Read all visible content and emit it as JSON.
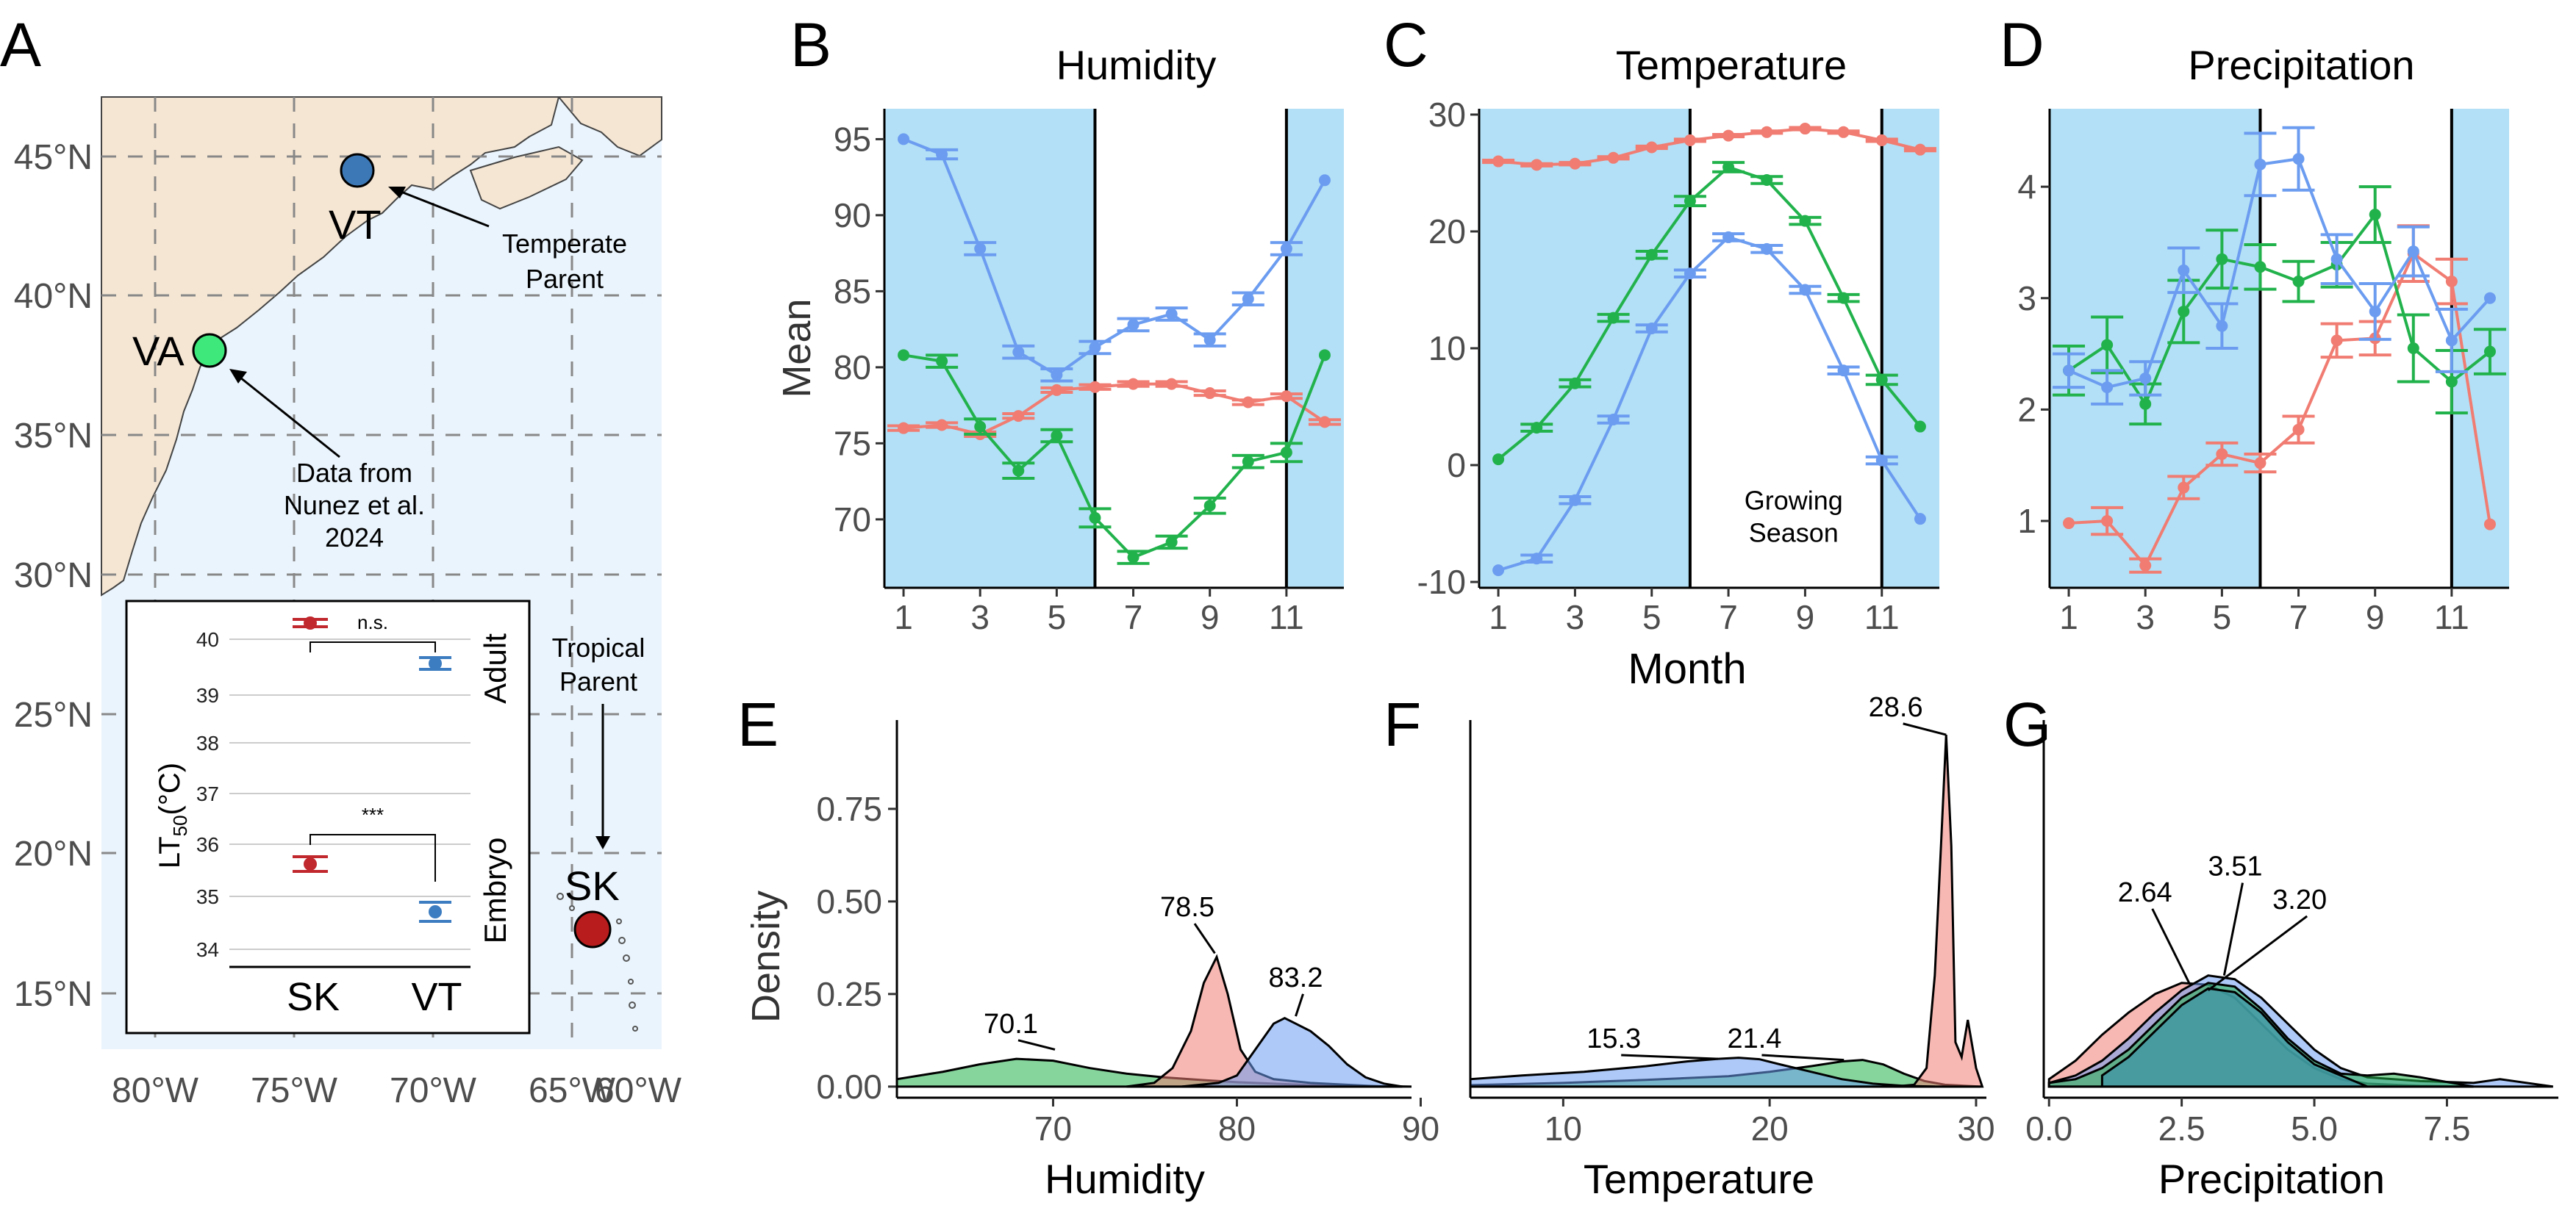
{
  "colors": {
    "red": "#F07C72",
    "green": "#22B24C",
    "blue": "#6B9CF0",
    "season_bg": "#B3E0F6",
    "map_land": "#F5E6D3",
    "map_sea": "#EAF4FC",
    "dark_red": "#B22222",
    "dark_blue": "#3E7FC1",
    "site_green": "#3EE87A",
    "site_blue": "#3C78B5",
    "site_red": "#B81C1C",
    "sig_red": "#C0282E",
    "sig_blue": "#3C7CC0"
  },
  "panel_letters": [
    "A",
    "B",
    "C",
    "D",
    "E",
    "F",
    "G"
  ],
  "map": {
    "lat_labels": [
      "45°N",
      "40°N",
      "35°N",
      "30°N",
      "25°N",
      "20°N",
      "15°N"
    ],
    "lon_labels": [
      "80°W",
      "75°W",
      "70°W",
      "65°W",
      "60°W"
    ],
    "sites": [
      {
        "label": "VT",
        "color": "#3C78B5"
      },
      {
        "label": "VA",
        "color": "#3EE87A"
      },
      {
        "label": "SK",
        "color": "#B81C1C"
      }
    ],
    "annotations": {
      "temperate_line1": "Temperate",
      "temperate_line2": "Parent",
      "data_line1": "Data from",
      "data_line2": "Nunez et al.",
      "data_line3": "2024",
      "tropical_line1": "Tropical",
      "tropical_line2": "Parent"
    }
  },
  "inset": {
    "ylabel_main": "LT",
    "ylabel_sub": "50",
    "ylabel_unit": "(°C)",
    "yticks": [
      "40",
      "39",
      "38",
      "37",
      "36",
      "35",
      "34"
    ],
    "xticks": [
      "SK",
      "VT"
    ],
    "strip_adult": "Adult",
    "strip_embryo": "Embryo",
    "sig_adult": "n.s.",
    "sig_embryo": "***"
  },
  "chart_data": [
    {
      "panel": "B",
      "type": "line",
      "title": "Humidity",
      "ylabel": "Mean",
      "xlabel": "",
      "x": [
        1,
        2,
        3,
        4,
        5,
        6,
        7,
        8,
        9,
        10,
        11,
        12
      ],
      "xticks": [
        1,
        3,
        5,
        7,
        9,
        11
      ],
      "ylim": [
        65.5,
        97
      ],
      "yticks": [
        70,
        75,
        80,
        85,
        90,
        95
      ],
      "season_shading": [
        [
          0.5,
          6
        ],
        [
          11,
          12.5
        ]
      ],
      "series": [
        {
          "color": "red",
          "values": [
            76.0,
            76.2,
            75.6,
            76.8,
            78.5,
            78.7,
            78.9,
            78.9,
            78.3,
            77.7,
            78.1,
            76.4
          ],
          "err": [
            0.15,
            0.15,
            0.15,
            0.15,
            0.15,
            0.15,
            0.15,
            0.15,
            0.15,
            0.15,
            0.15,
            0.15
          ]
        },
        {
          "color": "green",
          "values": [
            80.8,
            80.4,
            76.1,
            73.2,
            75.5,
            70.1,
            67.5,
            68.5,
            70.9,
            73.8,
            74.4,
            80.8
          ],
          "err": [
            0,
            0.4,
            0.5,
            0.5,
            0.4,
            0.6,
            0.4,
            0.4,
            0.5,
            0.4,
            0.6,
            0
          ]
        },
        {
          "color": "blue",
          "values": [
            95.0,
            94.0,
            87.8,
            81.0,
            79.5,
            81.3,
            82.8,
            83.5,
            81.8,
            84.5,
            87.8,
            92.3
          ],
          "err": [
            0,
            0.3,
            0.4,
            0.4,
            0.4,
            0.4,
            0.4,
            0.4,
            0.4,
            0.4,
            0.4,
            0
          ]
        }
      ]
    },
    {
      "panel": "C",
      "type": "line",
      "title": "Temperature",
      "ylabel": "",
      "xlabel": "Month",
      "x": [
        1,
        2,
        3,
        4,
        5,
        6,
        7,
        8,
        9,
        10,
        11,
        12
      ],
      "xticks": [
        1,
        3,
        5,
        7,
        9,
        11
      ],
      "ylim": [
        -10.5,
        30.5
      ],
      "yticks": [
        -10,
        0,
        10,
        20,
        30
      ],
      "season_shading": [
        [
          0.5,
          6
        ],
        [
          11,
          12.5
        ]
      ],
      "annotation_line1": "Growing",
      "annotation_line2": "Season",
      "series": [
        {
          "color": "red",
          "values": [
            26.0,
            25.7,
            25.8,
            26.3,
            27.2,
            27.8,
            28.2,
            28.5,
            28.8,
            28.5,
            27.8,
            27.0
          ],
          "err": [
            0.1,
            0.1,
            0.1,
            0.1,
            0.1,
            0.1,
            0.1,
            0.1,
            0.1,
            0.1,
            0.1,
            0.1
          ]
        },
        {
          "color": "green",
          "values": [
            0.5,
            3.2,
            7.0,
            12.6,
            18.0,
            22.6,
            25.5,
            24.4,
            20.9,
            14.3,
            7.3,
            3.3
          ],
          "err": [
            0,
            0.3,
            0.3,
            0.3,
            0.3,
            0.4,
            0.4,
            0.3,
            0.3,
            0.3,
            0.4,
            0
          ]
        },
        {
          "color": "blue",
          "values": [
            -9.0,
            -8.0,
            -3.0,
            3.9,
            11.7,
            16.4,
            19.5,
            18.5,
            15.0,
            8.1,
            0.4,
            -4.6
          ],
          "err": [
            0,
            0.3,
            0.3,
            0.3,
            0.3,
            0.3,
            0.3,
            0.3,
            0.3,
            0.3,
            0.3,
            0
          ]
        }
      ]
    },
    {
      "panel": "D",
      "type": "line",
      "title": "Precipitation",
      "ylabel": "",
      "xlabel": "",
      "x": [
        1,
        2,
        3,
        4,
        5,
        6,
        7,
        8,
        9,
        10,
        11,
        12
      ],
      "xticks": [
        1,
        3,
        5,
        7,
        9,
        11
      ],
      "ylim": [
        0.4,
        4.7
      ],
      "yticks": [
        1,
        2,
        3,
        4
      ],
      "season_shading": [
        [
          0.5,
          6
        ],
        [
          11,
          12.5
        ]
      ],
      "series": [
        {
          "color": "red",
          "values": [
            0.98,
            1.0,
            0.6,
            1.3,
            1.6,
            1.52,
            1.82,
            2.62,
            2.64,
            3.4,
            3.15,
            0.97
          ],
          "err": [
            0,
            0.12,
            0.06,
            0.1,
            0.1,
            0.08,
            0.12,
            0.15,
            0.15,
            0.25,
            0.2,
            0
          ]
        },
        {
          "color": "green",
          "values": [
            2.35,
            2.58,
            2.05,
            2.88,
            3.35,
            3.28,
            3.15,
            3.3,
            3.75,
            2.55,
            2.25,
            2.52
          ],
          "err": [
            0.22,
            0.25,
            0.18,
            0.28,
            0.26,
            0.2,
            0.18,
            0.2,
            0.25,
            0.3,
            0.28,
            0.2
          ]
        },
        {
          "color": "blue",
          "values": [
            2.35,
            2.2,
            2.28,
            3.25,
            2.75,
            4.2,
            4.25,
            3.35,
            2.88,
            3.42,
            2.62,
            3.0
          ],
          "err": [
            0.15,
            0.15,
            0.15,
            0.2,
            0.2,
            0.28,
            0.28,
            0.22,
            0.25,
            0.22,
            0.28,
            0
          ]
        }
      ]
    },
    {
      "panel": "E",
      "type": "area",
      "title": "",
      "xlabel": "Humidity",
      "ylabel": "Density",
      "xlim": [
        61.5,
        89.5
      ],
      "xticks": [
        70,
        80,
        90
      ],
      "ylim": [
        -0.03,
        0.97
      ],
      "yticks": [
        0.0,
        0.25,
        0.5,
        0.75
      ],
      "ytick_labels": [
        "0.00",
        "0.25",
        "0.50",
        "0.75"
      ],
      "peak_labels": [
        "70.1",
        "78.5",
        "83.2"
      ],
      "series": [
        {
          "color": "green",
          "x": [
            61.5,
            64,
            66,
            68,
            70,
            72,
            74,
            76,
            78,
            80,
            82,
            84,
            86,
            88,
            89.5
          ],
          "values": [
            0.02,
            0.04,
            0.06,
            0.075,
            0.07,
            0.05,
            0.035,
            0.025,
            0.018,
            0.012,
            0.008,
            0.004,
            0.002,
            0.001,
            0
          ]
        },
        {
          "color": "red",
          "x": [
            74,
            75.5,
            76.5,
            77.5,
            78.2,
            78.9,
            79.5,
            80.2,
            81,
            82,
            84,
            86,
            88
          ],
          "values": [
            0,
            0.01,
            0.05,
            0.15,
            0.28,
            0.35,
            0.25,
            0.1,
            0.04,
            0.02,
            0.01,
            0.005,
            0
          ]
        },
        {
          "color": "blue",
          "x": [
            77,
            79,
            80,
            81,
            82,
            82.6,
            83.2,
            84,
            85,
            86,
            87,
            88,
            89
          ],
          "values": [
            0,
            0.01,
            0.03,
            0.1,
            0.17,
            0.185,
            0.17,
            0.15,
            0.11,
            0.06,
            0.025,
            0.008,
            0
          ]
        }
      ]
    },
    {
      "panel": "F",
      "type": "area",
      "title": "",
      "xlabel": "Temperature",
      "ylabel": "",
      "xlim": [
        5.5,
        30.5
      ],
      "xticks": [
        10,
        20,
        30
      ],
      "ylim": [
        -0.03,
        0.97
      ],
      "yticks": [
        0.0,
        0.25,
        0.5,
        0.75
      ],
      "peak_labels": [
        "15.3",
        "21.4",
        "28.6"
      ],
      "series": [
        {
          "color": "green",
          "x": [
            5.5,
            10,
            14,
            18,
            20,
            22,
            23.5,
            24.5,
            25.5,
            26.5,
            27.5,
            28.5,
            29.5,
            30.2
          ],
          "values": [
            0.004,
            0.01,
            0.018,
            0.028,
            0.04,
            0.055,
            0.068,
            0.072,
            0.06,
            0.035,
            0.015,
            0.005,
            0.002,
            0
          ]
        },
        {
          "color": "red",
          "x": [
            26,
            27,
            27.6,
            28,
            28.3,
            28.55,
            28.8,
            29.0,
            29.3,
            29.6,
            30.0,
            30.3
          ],
          "values": [
            0,
            0.005,
            0.05,
            0.3,
            0.65,
            0.95,
            0.65,
            0.12,
            0.08,
            0.18,
            0.05,
            0
          ]
        },
        {
          "color": "blue",
          "x": [
            5.5,
            8,
            11,
            14,
            16,
            17.5,
            18.5,
            19.5,
            20.5,
            22,
            23.5,
            25,
            26.5,
            28
          ],
          "values": [
            0.02,
            0.03,
            0.04,
            0.055,
            0.068,
            0.075,
            0.078,
            0.074,
            0.06,
            0.04,
            0.02,
            0.008,
            0.002,
            0
          ]
        }
      ]
    },
    {
      "panel": "G",
      "type": "area",
      "title": "",
      "xlabel": "Precipitation",
      "ylabel": "",
      "xlim": [
        -0.1,
        9.6
      ],
      "xticks": [
        0.0,
        2.5,
        5.0,
        7.5
      ],
      "xtick_labels": [
        "0.0",
        "2.5",
        "5.0",
        "7.5"
      ],
      "ylim": [
        -0.03,
        0.97
      ],
      "yticks": [
        0.0,
        0.25,
        0.5,
        0.75
      ],
      "peak_labels": [
        "2.64",
        "3.51",
        "3.20"
      ],
      "series": [
        {
          "color": "red",
          "x": [
            0,
            0.5,
            1,
            1.5,
            2,
            2.5,
            3,
            3.5,
            4,
            4.5,
            5,
            5.5,
            6,
            7,
            8
          ],
          "values": [
            0.02,
            0.07,
            0.14,
            0.2,
            0.25,
            0.28,
            0.275,
            0.24,
            0.17,
            0.1,
            0.05,
            0.02,
            0.008,
            0.002,
            0
          ]
        },
        {
          "color": "blue",
          "x": [
            0,
            0.5,
            1,
            1.5,
            2,
            2.5,
            3,
            3.5,
            4,
            4.5,
            5,
            5.5,
            6,
            7,
            8,
            8.5,
            9.5
          ],
          "values": [
            0.01,
            0.03,
            0.07,
            0.13,
            0.2,
            0.26,
            0.3,
            0.29,
            0.24,
            0.17,
            0.1,
            0.05,
            0.025,
            0.015,
            0.01,
            0.02,
            0
          ]
        },
        {
          "color": "green",
          "x": [
            0,
            0.5,
            1,
            1.5,
            2,
            2.5,
            3,
            3.5,
            4,
            4.5,
            5,
            5.5,
            6,
            6.5,
            7,
            8
          ],
          "values": [
            0.01,
            0.02,
            0.05,
            0.1,
            0.17,
            0.24,
            0.28,
            0.27,
            0.21,
            0.13,
            0.07,
            0.035,
            0.03,
            0.035,
            0.025,
            0
          ]
        },
        {
          "color": "teal",
          "x": [
            1,
            1.5,
            2,
            2.5,
            3,
            3.5,
            4,
            4.5,
            5,
            5.5,
            6
          ],
          "values": [
            0.03,
            0.08,
            0.15,
            0.22,
            0.265,
            0.255,
            0.2,
            0.12,
            0.06,
            0.03,
            0
          ]
        }
      ]
    }
  ]
}
